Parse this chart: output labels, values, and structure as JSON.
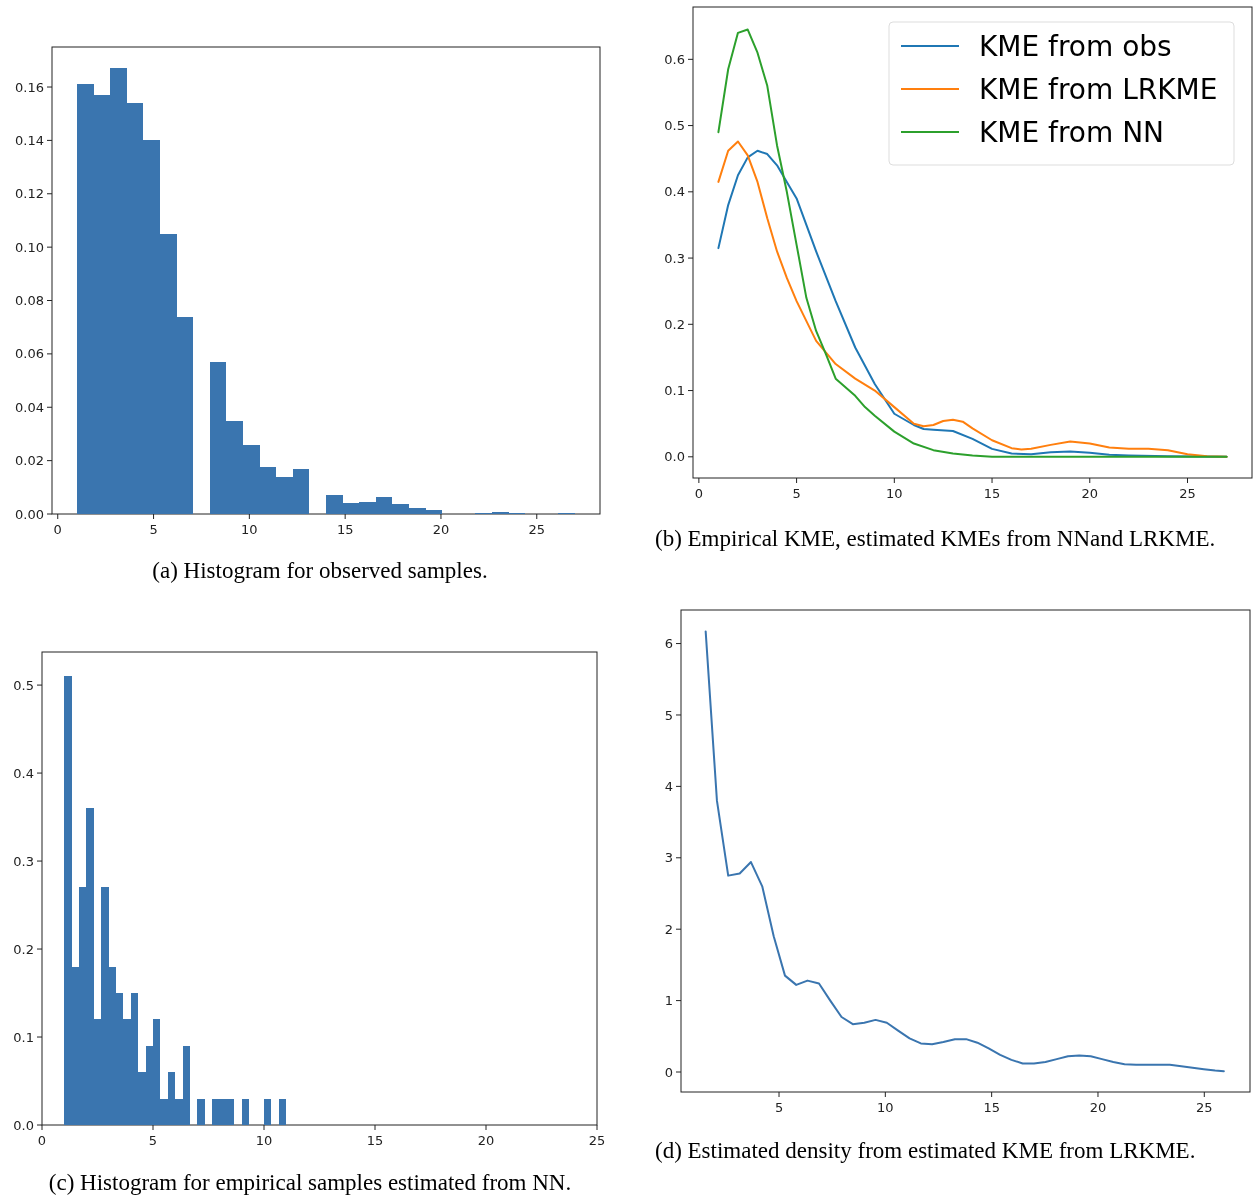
{
  "chart_data": [
    {
      "type": "histogram",
      "annotations": [
        "(a) Histogram for observed samples."
      ],
      "bins": [
        1,
        1.867,
        2.733,
        3.6,
        4.467,
        5.333,
        6.2,
        7.067,
        7.933,
        8.8,
        9.667,
        10.533,
        11.4,
        12.267,
        13.133,
        14,
        14.867,
        15.733,
        16.6,
        17.467,
        18.333,
        19.2,
        20.067,
        20.933,
        21.8,
        22.667,
        23.533,
        24.4,
        25.267,
        26.133,
        27
      ],
      "values": [
        0.161,
        0.157,
        0.167,
        0.154,
        0.14,
        0.105,
        0.074,
        0,
        0.057,
        0.035,
        0.026,
        0.0175,
        0.014,
        0.017,
        0,
        0.007,
        0.0042,
        0.0045,
        0.0062,
        0.0038,
        0.0023,
        0.0015,
        0,
        0,
        0.0003,
        0.0006,
        0.0003,
        0,
        0,
        0.0004
      ],
      "color": "#3a75af",
      "xlim": [
        -0.3,
        28.3
      ],
      "ylim": [
        0,
        0.175
      ],
      "xticks": [
        0,
        5,
        10,
        15,
        20,
        25
      ],
      "yticks": [
        {
          "value": 0,
          "label": "0.00"
        },
        {
          "value": 0.02,
          "label": "0.02"
        },
        {
          "value": 0.04,
          "label": "0.04"
        },
        {
          "value": 0.06,
          "label": "0.06"
        },
        {
          "value": 0.08,
          "label": "0.08"
        },
        {
          "value": 0.1,
          "label": "0.10"
        },
        {
          "value": 0.12,
          "label": "0.12"
        },
        {
          "value": 0.14,
          "label": "0.14"
        },
        {
          "value": 0.16,
          "label": "0.16"
        }
      ]
    },
    {
      "type": "line",
      "annotations": [
        "(b) Empirical KME, estimated KMEs from NNand LRKME."
      ],
      "legend": "top right",
      "series": [
        {
          "name": "KME from obs",
          "color": "#1f77b4",
          "x": [
            1,
            1.5,
            2,
            2.5,
            3,
            3.5,
            4,
            4.5,
            5,
            6,
            7,
            8,
            9,
            10,
            11,
            11.5,
            12,
            13,
            14,
            15,
            16,
            17,
            18,
            19,
            20,
            21,
            22,
            24,
            27
          ],
          "values": [
            0.315,
            0.38,
            0.425,
            0.452,
            0.462,
            0.457,
            0.44,
            0.415,
            0.39,
            0.31,
            0.235,
            0.165,
            0.11,
            0.065,
            0.048,
            0.042,
            0.041,
            0.039,
            0.027,
            0.012,
            0.005,
            0.004,
            0.007,
            0.008,
            0.006,
            0.003,
            0.002,
            0.001,
            0
          ]
        },
        {
          "name": "KME from LRKME",
          "color": "#ff7f0e",
          "x": [
            1,
            1.5,
            2,
            2.5,
            3,
            3.5,
            4,
            4.5,
            5,
            6,
            7,
            8,
            9,
            10,
            11,
            11.5,
            12,
            12.5,
            13,
            13.5,
            14,
            15,
            16,
            16.5,
            17,
            18,
            19,
            20,
            21,
            22,
            23,
            24,
            25,
            26,
            27
          ],
          "values": [
            0.415,
            0.462,
            0.476,
            0.455,
            0.415,
            0.36,
            0.31,
            0.27,
            0.235,
            0.175,
            0.14,
            0.118,
            0.1,
            0.075,
            0.05,
            0.046,
            0.048,
            0.054,
            0.056,
            0.053,
            0.043,
            0.025,
            0.013,
            0.011,
            0.012,
            0.018,
            0.023,
            0.02,
            0.014,
            0.012,
            0.012,
            0.01,
            0.004,
            0.001,
            0
          ]
        },
        {
          "name": "KME from NN",
          "color": "#2ca02c",
          "x": [
            1,
            1.5,
            2,
            2.5,
            3,
            3.5,
            4,
            4.5,
            5,
            5.5,
            6,
            6.5,
            7,
            8,
            8.5,
            9,
            10,
            11,
            12,
            13,
            14,
            15,
            17,
            20,
            27
          ],
          "values": [
            0.49,
            0.585,
            0.64,
            0.645,
            0.61,
            0.56,
            0.47,
            0.4,
            0.32,
            0.24,
            0.19,
            0.155,
            0.118,
            0.092,
            0.075,
            0.062,
            0.038,
            0.02,
            0.01,
            0.005,
            0.002,
            0,
            0,
            0,
            0
          ]
        }
      ],
      "xlim": [
        -0.3,
        28.3
      ],
      "ylim": [
        -0.032,
        0.679
      ],
      "xticks": [
        0,
        5,
        10,
        15,
        20,
        25
      ],
      "yticks": [
        {
          "value": 0,
          "label": "0.0"
        },
        {
          "value": 0.1,
          "label": "0.1"
        },
        {
          "value": 0.2,
          "label": "0.2"
        },
        {
          "value": 0.3,
          "label": "0.3"
        },
        {
          "value": 0.4,
          "label": "0.4"
        },
        {
          "value": 0.5,
          "label": "0.5"
        },
        {
          "value": 0.6,
          "label": "0.6"
        }
      ]
    },
    {
      "type": "histogram",
      "annotations": [
        "(c) Histogram for empirical samples estimated from NN."
      ],
      "bins": [
        1,
        1.333,
        1.667,
        2,
        2.333,
        2.667,
        3,
        3.333,
        3.667,
        4,
        4.333,
        4.667,
        5,
        5.333,
        5.667,
        6,
        6.333,
        6.667,
        7,
        7.333,
        7.667,
        8,
        8.333,
        8.667,
        9,
        9.333,
        9.667,
        10,
        10.333,
        10.667,
        11
      ],
      "values": [
        0.51,
        0.18,
        0.27,
        0.36,
        0.12,
        0.27,
        0.18,
        0.15,
        0.12,
        0.15,
        0.06,
        0.09,
        0.12,
        0.03,
        0.06,
        0.03,
        0.09,
        0,
        0.03,
        0,
        0.03,
        0.03,
        0.03,
        0,
        0.03,
        0,
        0,
        0.03,
        0,
        0.03
      ],
      "color": "#3a75af",
      "xlim": [
        0,
        25
      ],
      "ylim": [
        0,
        0.5376
      ],
      "xticks": [
        0,
        5,
        10,
        15,
        20,
        25
      ],
      "yticks": [
        {
          "value": 0,
          "label": "0.0"
        },
        {
          "value": 0.1,
          "label": "0.1"
        },
        {
          "value": 0.2,
          "label": "0.2"
        },
        {
          "value": 0.3,
          "label": "0.3"
        },
        {
          "value": 0.4,
          "label": "0.4"
        },
        {
          "value": 0.5,
          "label": "0.5"
        }
      ]
    },
    {
      "type": "line",
      "annotations": [
        "(d) Estimated density from estimated KME from LRKME."
      ],
      "series": [
        {
          "color": "#3a75af",
          "x": [
            1.55,
            2.08,
            2.61,
            3.15,
            3.68,
            4.21,
            4.75,
            5.28,
            5.81,
            6.34,
            6.88,
            7.41,
            7.94,
            8.47,
            9.01,
            9.54,
            10.07,
            10.6,
            11.14,
            11.67,
            12.2,
            12.73,
            13.27,
            13.8,
            14.33,
            14.86,
            15.4,
            15.93,
            16.46,
            16.99,
            17.53,
            18.06,
            18.59,
            19.12,
            19.66,
            20.19,
            20.72,
            21.25,
            21.79,
            22.32,
            22.85,
            23.38,
            23.92,
            24.45,
            24.98,
            25.51,
            25.92
          ],
          "values": [
            6.17,
            3.8,
            2.75,
            2.78,
            2.94,
            2.6,
            1.9,
            1.35,
            1.22,
            1.28,
            1.24,
            1.0,
            0.77,
            0.67,
            0.69,
            0.73,
            0.69,
            0.58,
            0.47,
            0.4,
            0.39,
            0.42,
            0.46,
            0.46,
            0.41,
            0.33,
            0.24,
            0.17,
            0.12,
            0.12,
            0.14,
            0.18,
            0.22,
            0.23,
            0.22,
            0.18,
            0.14,
            0.11,
            0.1,
            0.1,
            0.1,
            0.1,
            0.08,
            0.06,
            0.04,
            0.02,
            0.01
          ]
        }
      ],
      "xlim": [
        0.39,
        27.15
      ],
      "ylim": [
        -0.28,
        6.47
      ],
      "xticks": [
        5,
        10,
        15,
        20,
        25
      ],
      "yticks": [
        0,
        1,
        2,
        3,
        4,
        5,
        6
      ]
    }
  ]
}
